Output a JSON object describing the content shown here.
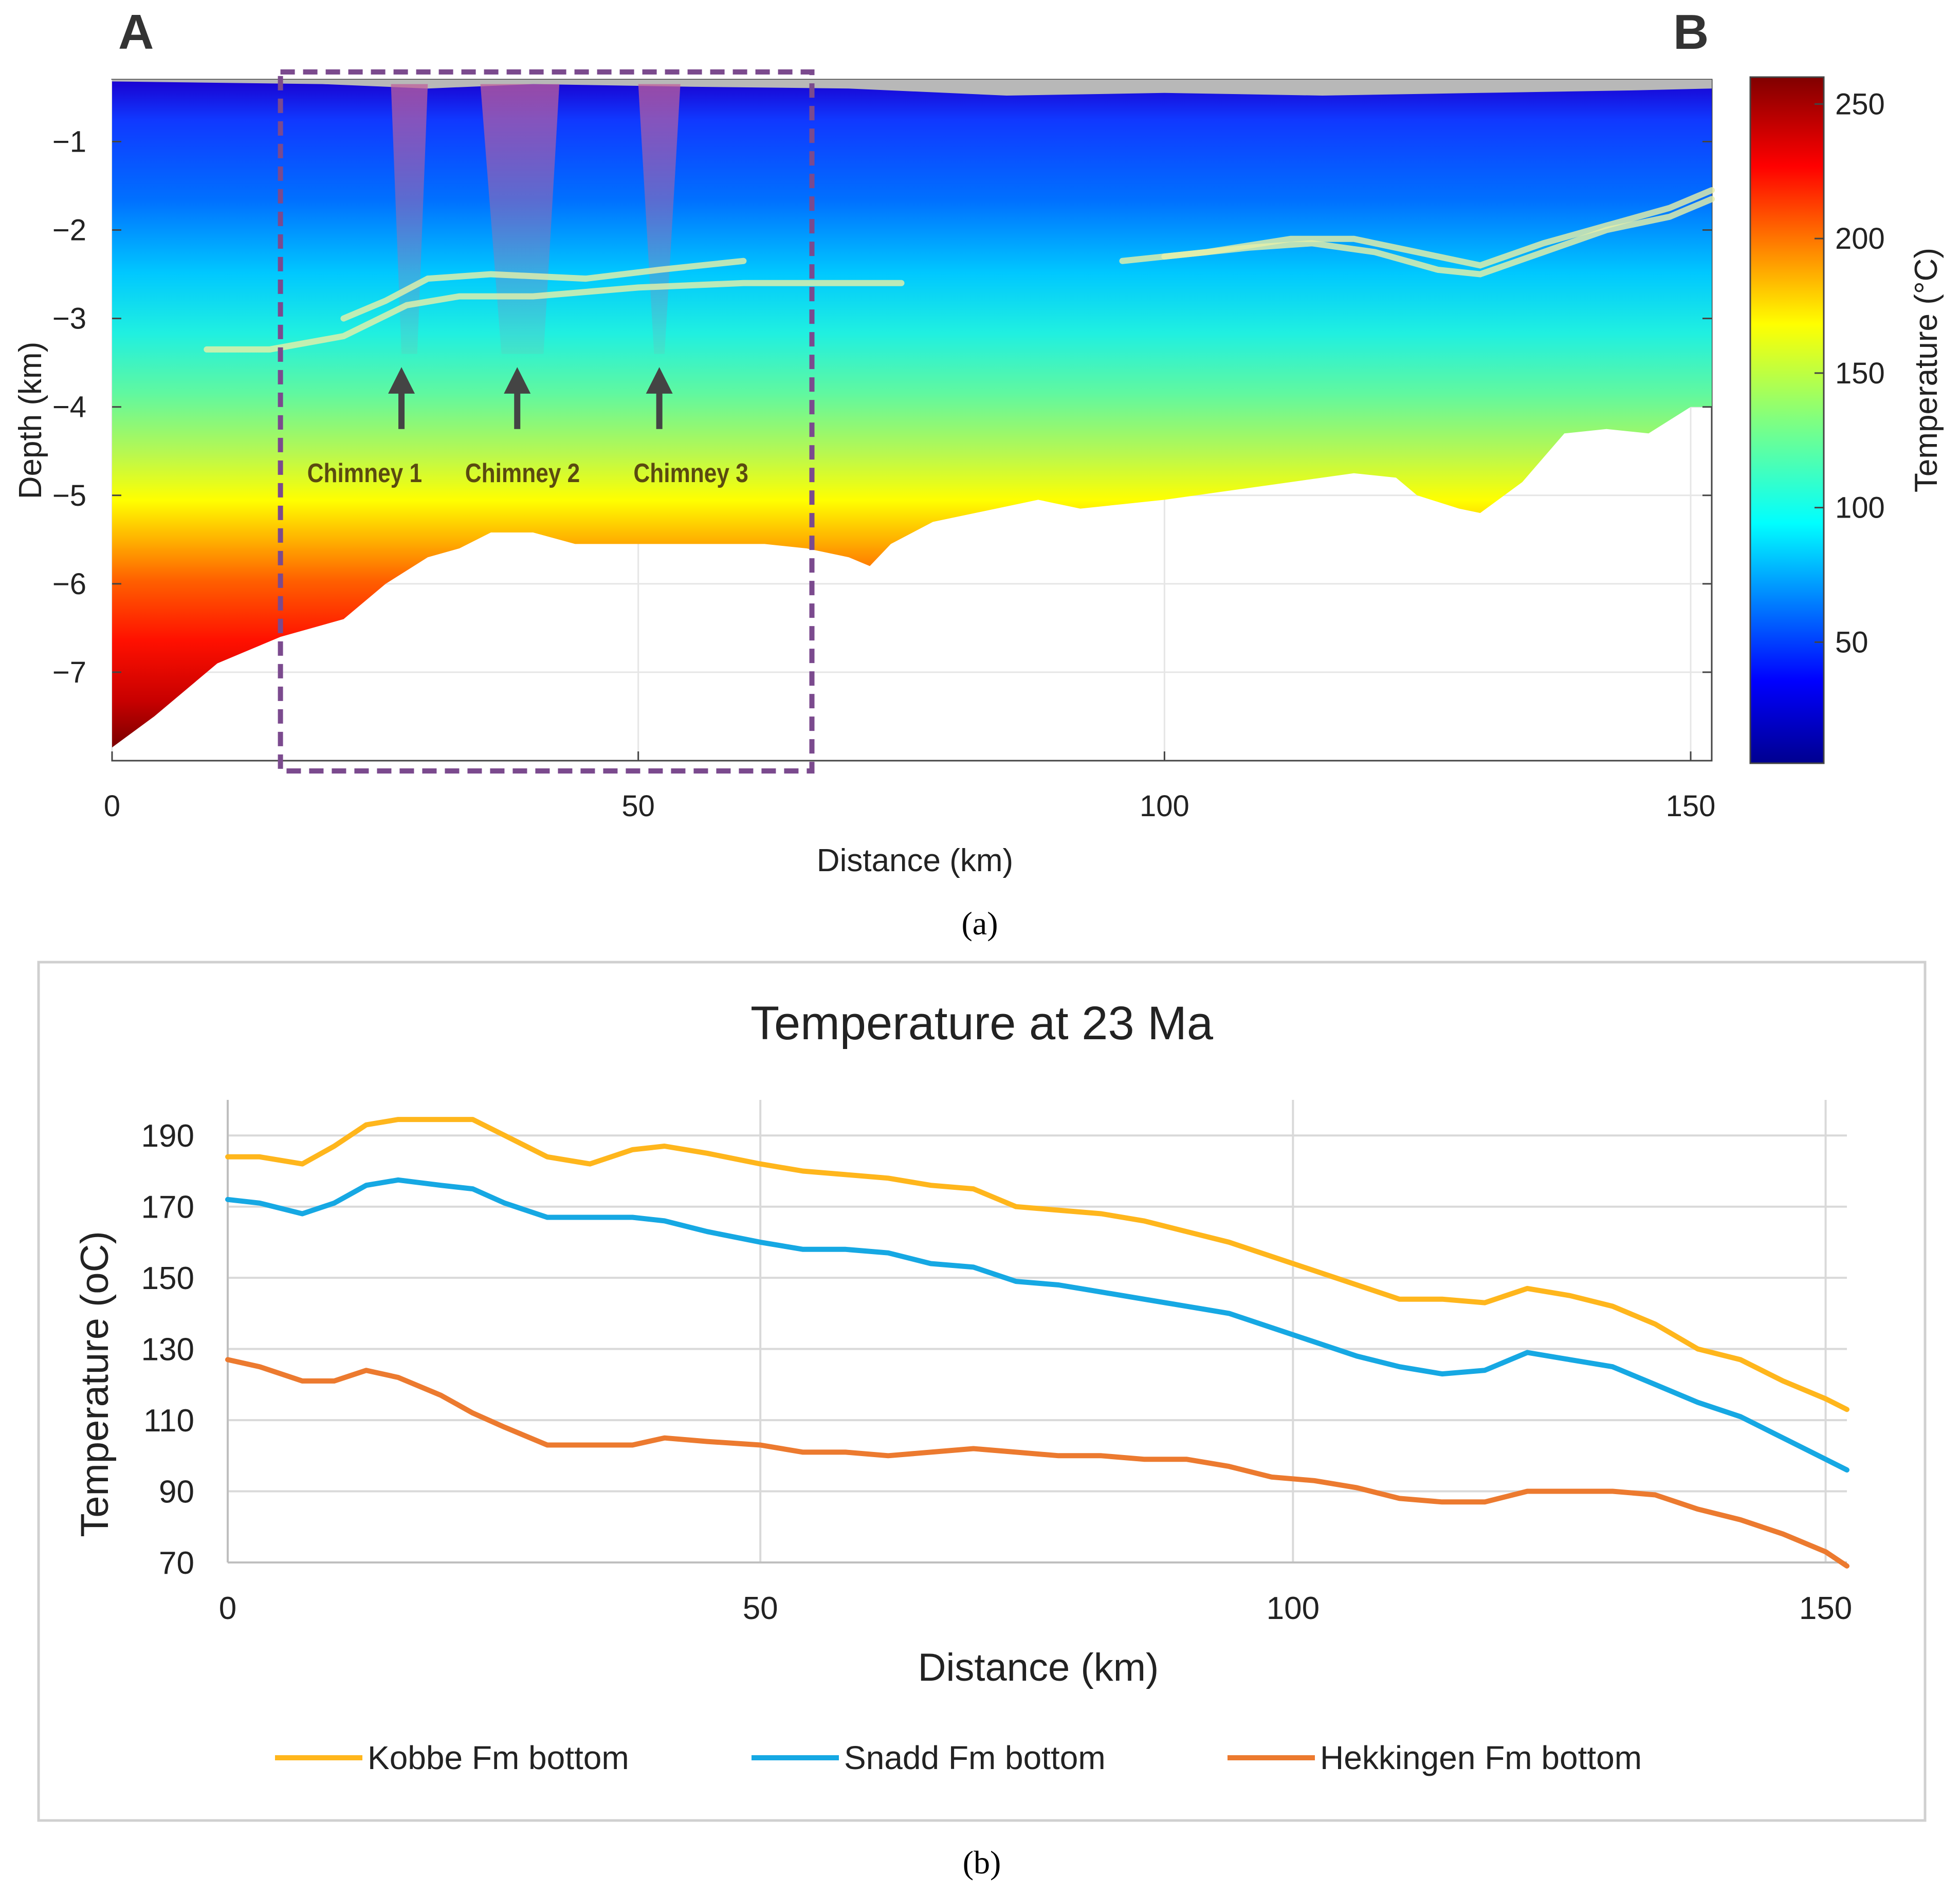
{
  "panel_a": {
    "caption": "(a)",
    "left_label": "A",
    "right_label": "B",
    "chimney_labels": [
      "Chimney 1",
      "Chimney 2",
      "Chimney 3"
    ],
    "colorbar": {
      "label": "Temperature (°C)",
      "ticks": [
        50,
        100,
        150,
        200,
        250
      ],
      "range": [
        5,
        260
      ]
    },
    "colors": {
      "highlight_box": "#7b4a8e",
      "arrow": "#444444"
    }
  },
  "panel_b": {
    "caption": "(b)",
    "colors": {
      "kobbe": "#ffb61c",
      "snadd": "#16a8e3",
      "hekkingen": "#ec7a2f",
      "grid": "#d9d9d9",
      "frame": "#d0d0d0"
    }
  },
  "chart_data": [
    {
      "type": "heatmap",
      "title": "",
      "xlabel": "Distance (km)",
      "ylabel": "Depth (km)",
      "xlim": [
        0,
        152
      ],
      "ylim": [
        -8,
        -0.3
      ],
      "xticks": [
        0,
        50,
        100,
        150
      ],
      "yticks": [
        -1,
        -2,
        -3,
        -4,
        -5,
        -6,
        -7
      ],
      "colorbar_label": "Temperature (°C)",
      "colorbar_ticks": [
        50,
        100,
        150,
        200,
        250
      ],
      "basement_profile": {
        "x": [
          0,
          4,
          10,
          16,
          22,
          26,
          30,
          33,
          36,
          40,
          44,
          48,
          55,
          62,
          66,
          70,
          72,
          74,
          78,
          84,
          88,
          92,
          96,
          100,
          106,
          112,
          118,
          122,
          124,
          128,
          130,
          134,
          138,
          142,
          146,
          150,
          152
        ],
        "depth": [
          -7.85,
          -7.5,
          -6.9,
          -6.6,
          -6.4,
          -6.0,
          -5.7,
          -5.6,
          -5.42,
          -5.42,
          -5.55,
          -5.55,
          -5.55,
          -5.55,
          -5.6,
          -5.7,
          -5.8,
          -5.55,
          -5.3,
          -5.15,
          -5.05,
          -5.15,
          -5.1,
          -5.05,
          -4.95,
          -4.85,
          -4.75,
          -4.8,
          -5.0,
          -5.15,
          -5.2,
          -4.85,
          -4.3,
          -4.25,
          -4.3,
          -4.0,
          -4.0
        ]
      },
      "annotations": [
        {
          "text": "Chimney 1",
          "x": 24
        },
        {
          "text": "Chimney 2",
          "x": 39
        },
        {
          "text": "Chimney 3",
          "x": 55
        }
      ],
      "highlight_box_x": [
        16,
        66.5
      ]
    },
    {
      "type": "line",
      "title": "Temperature at 23 Ma",
      "xlabel": "Distance (km)",
      "ylabel": "Temperature (oC)",
      "xlim": [
        0,
        152
      ],
      "ylim": [
        70,
        200
      ],
      "xticks": [
        0,
        50,
        100,
        150
      ],
      "yticks": [
        70,
        90,
        110,
        130,
        150,
        170,
        190
      ],
      "grid": true,
      "legend": "bottom",
      "x": [
        0,
        3,
        7,
        10,
        13,
        16,
        20,
        23,
        26,
        30,
        34,
        38,
        41,
        45,
        50,
        54,
        58,
        62,
        66,
        70,
        74,
        78,
        82,
        86,
        90,
        94,
        98,
        102,
        106,
        110,
        114,
        118,
        122,
        126,
        130,
        134,
        138,
        142,
        146,
        150,
        152
      ],
      "series": [
        {
          "name": "Kobbe Fm bottom",
          "values": [
            184,
            184,
            182,
            187,
            193,
            194.5,
            194.5,
            194.5,
            190,
            184,
            182,
            186,
            187,
            185,
            182,
            180,
            179,
            178,
            176,
            175,
            170,
            169,
            168,
            166,
            163,
            160,
            156,
            152,
            148,
            144,
            144,
            143,
            147,
            145,
            142,
            137,
            130,
            127,
            121,
            116,
            113
          ]
        },
        {
          "name": "Snadd Fm bottom",
          "values": [
            172,
            171,
            168,
            171,
            176,
            177.5,
            176,
            175,
            171,
            167,
            167,
            167,
            166,
            163,
            160,
            158,
            158,
            157,
            154,
            153,
            149,
            148,
            146,
            144,
            142,
            140,
            136,
            132,
            128,
            125,
            123,
            124,
            129,
            127,
            125,
            120,
            115,
            111,
            105,
            99,
            96
          ]
        },
        {
          "name": "Hekkingen Fm bottom",
          "values": [
            127,
            125,
            121,
            121,
            124,
            122,
            117,
            112,
            108,
            103,
            103,
            103,
            105,
            104,
            103,
            101,
            101,
            100,
            101,
            102,
            101,
            100,
            100,
            99,
            99,
            97,
            94,
            93,
            91,
            88,
            87,
            87,
            90,
            90,
            90,
            89,
            85,
            82,
            78,
            73,
            69
          ]
        }
      ]
    }
  ]
}
